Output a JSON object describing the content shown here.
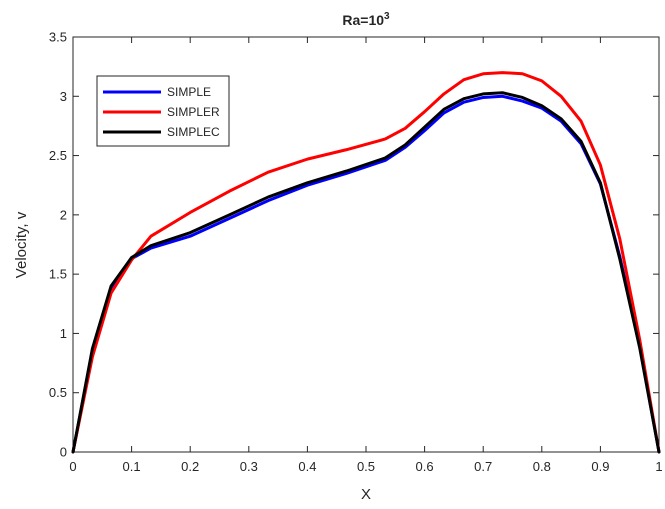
{
  "chart_data": {
    "type": "line",
    "title_base": "Ra=10",
    "title_exponent": "3",
    "xlabel": "X",
    "ylabel": "Velocity, v",
    "xlim": [
      0,
      1
    ],
    "ylim": [
      0,
      3.5
    ],
    "x_ticks": [
      "0",
      "0.1",
      "0.2",
      "0.3",
      "0.4",
      "0.5",
      "0.6",
      "0.7",
      "0.8",
      "0.9",
      "1"
    ],
    "y_ticks": [
      "0",
      "0.5",
      "1",
      "1.5",
      "2",
      "2.5",
      "3",
      "3.5"
    ],
    "legend_position": "top-left",
    "grid": false,
    "series": [
      {
        "name": "SIMPLE",
        "color": "#0000ff",
        "x": [
          0,
          0.033,
          0.065,
          0.1,
          0.133,
          0.2,
          0.267,
          0.333,
          0.4,
          0.467,
          0.533,
          0.567,
          0.6,
          0.633,
          0.667,
          0.7,
          0.733,
          0.767,
          0.8,
          0.833,
          0.867,
          0.9,
          0.933,
          0.967,
          1
        ],
        "values": [
          0,
          0.85,
          1.38,
          1.63,
          1.72,
          1.82,
          1.97,
          2.12,
          2.25,
          2.35,
          2.46,
          2.57,
          2.71,
          2.86,
          2.95,
          2.99,
          3.0,
          2.96,
          2.9,
          2.79,
          2.6,
          2.26,
          1.65,
          0.9,
          0
        ]
      },
      {
        "name": "SIMPLER",
        "color": "#ff0000",
        "x": [
          0,
          0.033,
          0.065,
          0.1,
          0.133,
          0.2,
          0.267,
          0.333,
          0.4,
          0.467,
          0.533,
          0.567,
          0.6,
          0.633,
          0.667,
          0.7,
          0.733,
          0.767,
          0.8,
          0.833,
          0.867,
          0.9,
          0.933,
          0.967,
          1
        ],
        "values": [
          0,
          0.8,
          1.34,
          1.62,
          1.82,
          2.02,
          2.2,
          2.36,
          2.47,
          2.55,
          2.64,
          2.73,
          2.87,
          3.02,
          3.14,
          3.19,
          3.2,
          3.19,
          3.13,
          3.0,
          2.79,
          2.42,
          1.8,
          0.95,
          0
        ]
      },
      {
        "name": "SIMPLEC",
        "color": "#000000",
        "x": [
          0,
          0.033,
          0.065,
          0.1,
          0.133,
          0.2,
          0.267,
          0.333,
          0.4,
          0.467,
          0.533,
          0.567,
          0.6,
          0.633,
          0.667,
          0.7,
          0.733,
          0.767,
          0.8,
          0.833,
          0.867,
          0.9,
          0.933,
          0.967,
          1
        ],
        "values": [
          0,
          0.87,
          1.4,
          1.64,
          1.74,
          1.85,
          2.0,
          2.15,
          2.27,
          2.37,
          2.48,
          2.59,
          2.74,
          2.89,
          2.98,
          3.02,
          3.03,
          2.99,
          2.92,
          2.81,
          2.62,
          2.27,
          1.63,
          0.88,
          0
        ]
      }
    ]
  }
}
